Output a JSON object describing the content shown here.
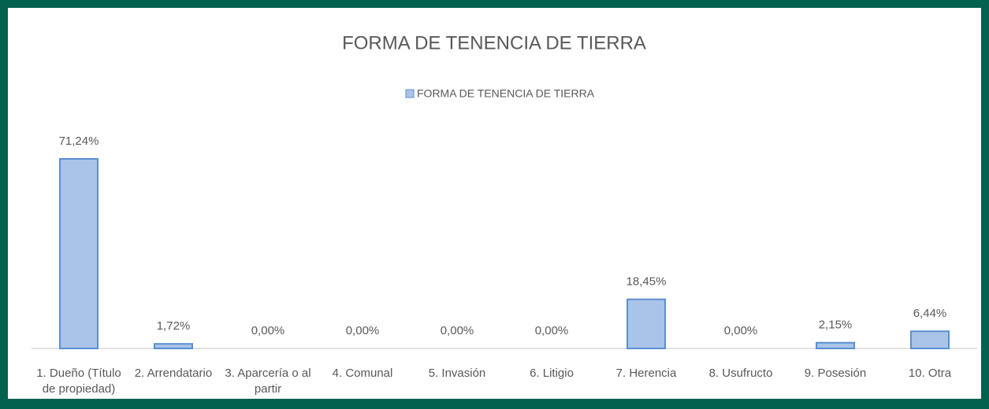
{
  "chart_data": {
    "type": "bar",
    "title": "FORMA DE TENENCIA DE TIERRA",
    "categories": [
      "1. Dueño (Título de propiedad)",
      "2. Arrendatario",
      "3. Aparcería o al partir",
      "4. Comunal",
      "5. Invasión",
      "6. Litigio",
      "7. Herencia",
      "8. Usufructo",
      "9. Posesión",
      "10. Otra"
    ],
    "series": [
      {
        "name": "FORMA DE TENENCIA DE TIERRA",
        "color": "#a9c4e8",
        "values": [
          71.24,
          1.72,
          0,
          0,
          0,
          0,
          18.45,
          0,
          2.15,
          6.44
        ],
        "value_labels": [
          "71,24%",
          "1,72%",
          "0,00%",
          "0,00%",
          "0,00%",
          "0,00%",
          "18,45%",
          "0,00%",
          "2,15%",
          "6,44%"
        ]
      }
    ],
    "legend": "top"
  }
}
